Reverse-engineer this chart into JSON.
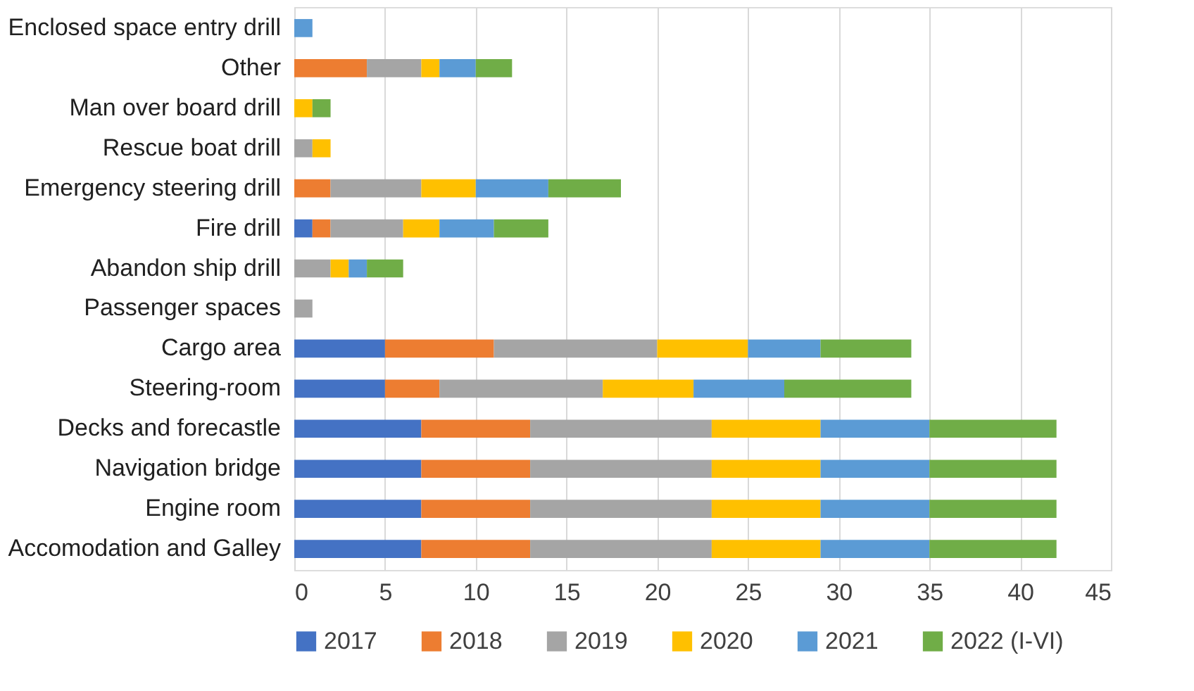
{
  "chart_data": {
    "type": "bar",
    "orientation": "horizontal",
    "stacked": true,
    "categories": [
      "Enclosed space entry drill",
      "Other",
      "Man over board drill",
      "Rescue boat drill",
      "Emergency steering drill",
      "Fire drill",
      "Abandon ship drill",
      "Passenger spaces",
      "Cargo area",
      "Steering-room",
      "Decks and forecastle",
      "Navigation bridge",
      "Engine room",
      "Accomodation and Galley"
    ],
    "series": [
      {
        "name": "2017",
        "color": "#4472c4",
        "values": [
          null,
          null,
          null,
          null,
          null,
          1,
          null,
          null,
          5,
          5,
          7,
          7,
          7,
          7
        ]
      },
      {
        "name": "2018",
        "color": "#ed7d31",
        "values": [
          null,
          4,
          null,
          null,
          2,
          1,
          null,
          null,
          6,
          3,
          6,
          6,
          6,
          6
        ]
      },
      {
        "name": "2019",
        "color": "#a5a5a5",
        "values": [
          null,
          3,
          null,
          1,
          5,
          4,
          2,
          1,
          9,
          9,
          10,
          10,
          10,
          10
        ]
      },
      {
        "name": "2020",
        "color": "#ffc000",
        "values": [
          null,
          1,
          1,
          1,
          3,
          2,
          1,
          null,
          5,
          5,
          6,
          6,
          6,
          6
        ]
      },
      {
        "name": "2021",
        "color": "#5b9bd5",
        "values": [
          1,
          2,
          null,
          null,
          4,
          3,
          1,
          null,
          4,
          5,
          6,
          6,
          6,
          6
        ]
      },
      {
        "name": "2022 (I-VI)",
        "color": "#70ad47",
        "values": [
          null,
          2,
          1,
          null,
          4,
          3,
          2,
          null,
          5,
          7,
          7,
          7,
          7,
          7
        ]
      }
    ],
    "xlim": [
      0,
      45
    ],
    "xticks": [
      0,
      5,
      10,
      15,
      20,
      25,
      30,
      35,
      40,
      45
    ],
    "grid": "x",
    "legend": "bottom"
  }
}
